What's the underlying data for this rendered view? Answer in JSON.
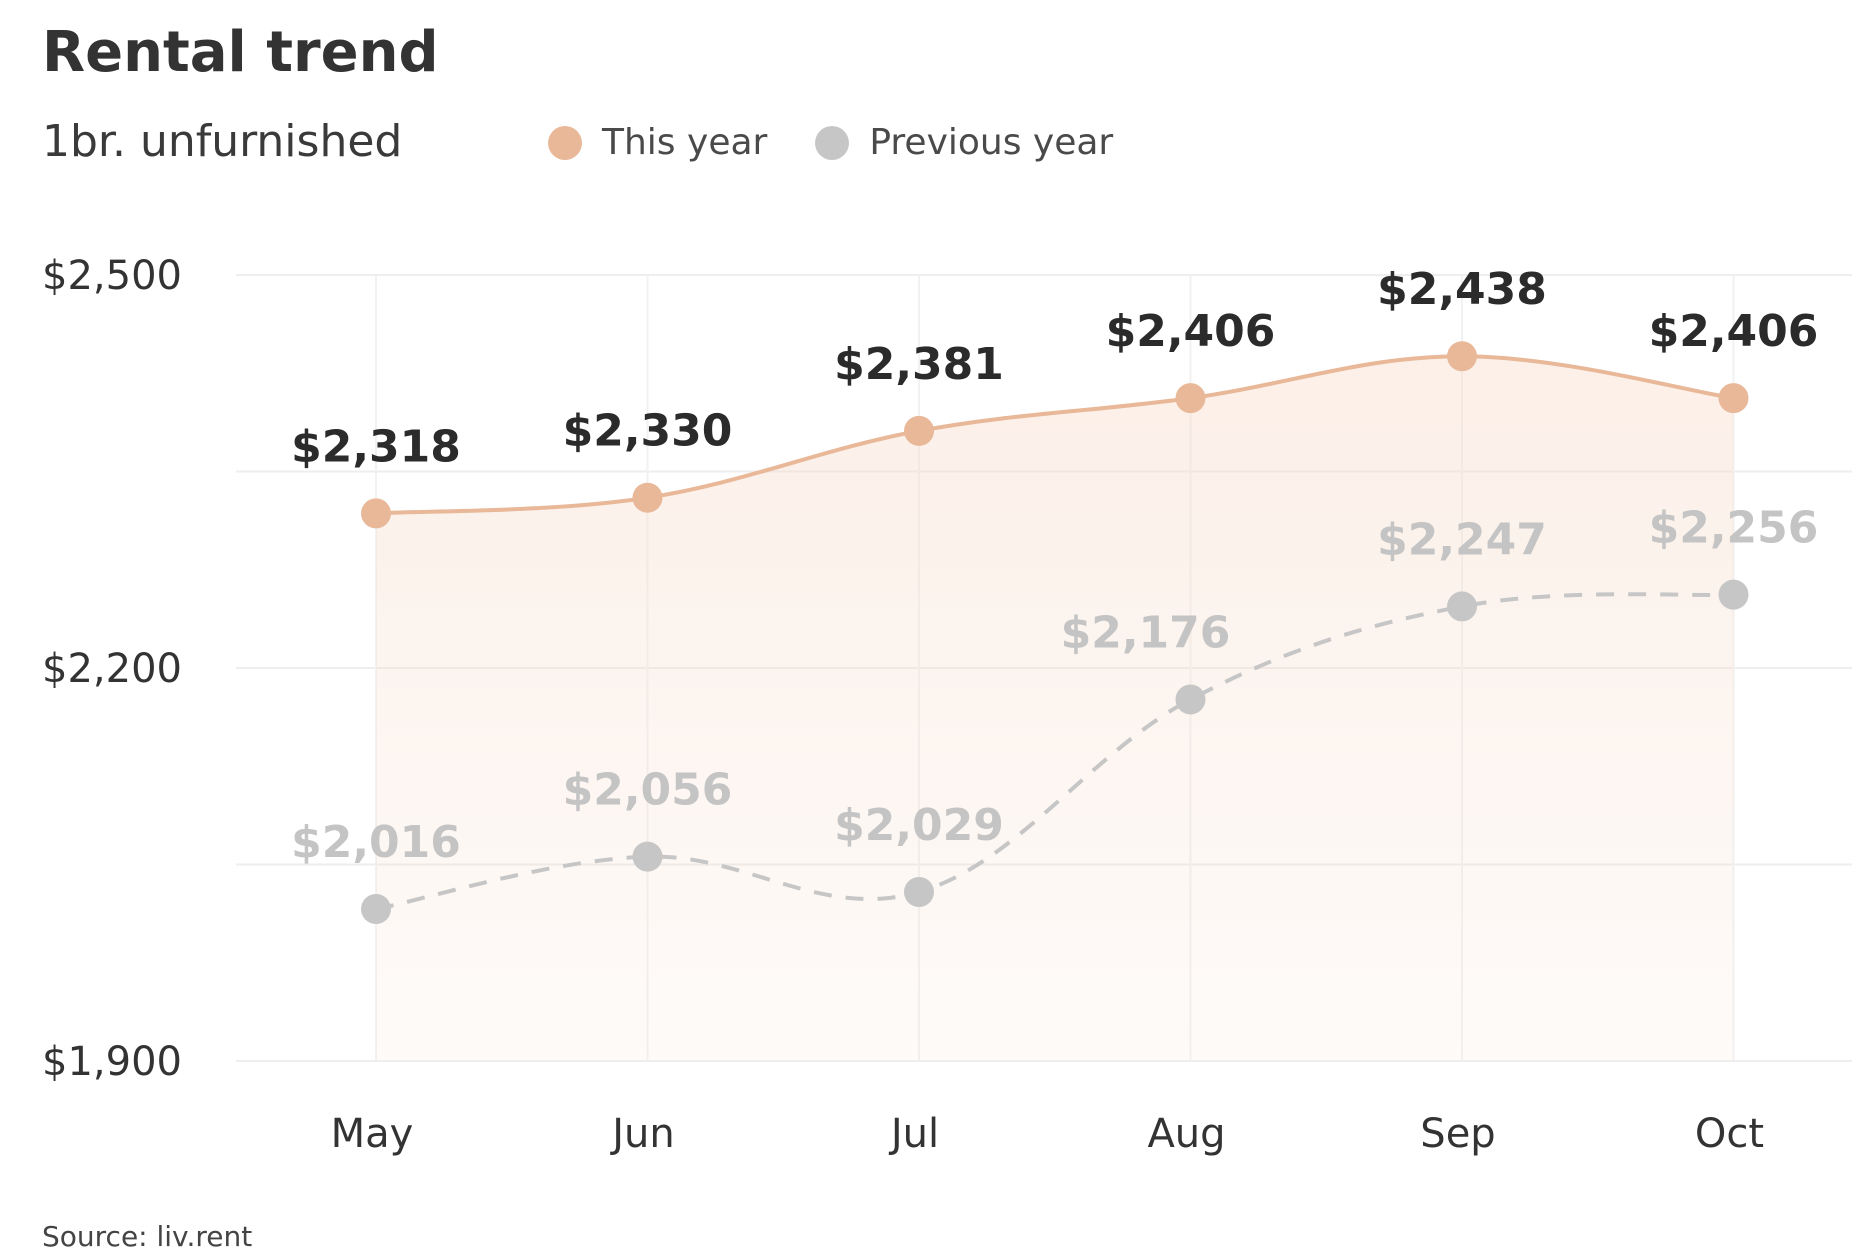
{
  "title": "Rental trend",
  "subtitle": "1br. unfurnished",
  "source": "Source: liv.rent",
  "colors": {
    "this_year": "#e8b898",
    "previous_year": "#c6c6c6",
    "grid": "#eeeeee",
    "area_top": "#f7dccb"
  },
  "chart_data": {
    "type": "line",
    "categories": [
      "May",
      "Jun",
      "Jul",
      "Aug",
      "Sep",
      "Oct"
    ],
    "series": [
      {
        "name": "This year",
        "values": [
          2318,
          2330,
          2381,
          2406,
          2438,
          2406
        ],
        "labels": [
          "$2,318",
          "$2,330",
          "$2,381",
          "$2,406",
          "$2,438",
          "$2,406"
        ],
        "style": "solid",
        "fill": "area"
      },
      {
        "name": "Previous year",
        "values": [
          2016,
          2056,
          2029,
          2176,
          2247,
          2256
        ],
        "labels": [
          "$2,016",
          "$2,056",
          "$2,029",
          "$2,176",
          "$2,247",
          "$2,256"
        ],
        "style": "dashed"
      }
    ],
    "ylim": [
      1900,
      2500
    ],
    "yticks": [
      1900,
      2200,
      2500
    ],
    "ytick_labels": [
      "$1,900",
      "$2,200",
      "$2,500"
    ],
    "grid": "horizontal and vertical",
    "legend_position": "top"
  }
}
